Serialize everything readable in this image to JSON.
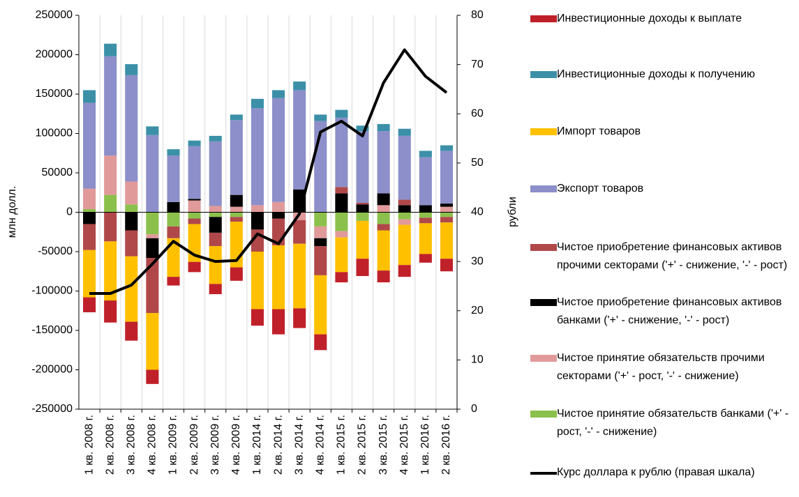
{
  "chart_data": {
    "type": "bar",
    "y_label": "млн долл.",
    "y2_label": "рубли",
    "categories": [
      "1 кв. 2008 г.",
      "2 кв. 2008 г.",
      "3 кв. 2008 г.",
      "4 кв. 2008 г.",
      "1 кв. 2009 г.",
      "2 кв. 2009 г.",
      "3 кв. 2009 г.",
      "4 кв. 2009 г.",
      "1 кв. 2014 г.",
      "2 кв. 2014 г.",
      "3 кв. 2014 г.",
      "4 кв. 2014 г.",
      "1 кв. 2015 г.",
      "2 кв. 2015 г.",
      "3 кв. 2015 г.",
      "4 кв. 2015 г.",
      "1 кв. 2016 г.",
      "2 кв. 2016 г."
    ],
    "stacked": true,
    "series": [
      {
        "name": "Инвестиционные доходы к выплате",
        "color": "#c0202a",
        "values": [
          -19000,
          -28000,
          -24000,
          -18000,
          -11000,
          -13000,
          -13000,
          -17000,
          -21000,
          -32000,
          -25000,
          -20000,
          -13000,
          -22000,
          -15000,
          -15000,
          -11000,
          -16000
        ]
      },
      {
        "name": "Инвестиционные доходы к получению",
        "color": "#3b90a8",
        "values": [
          16000,
          16000,
          14000,
          11000,
          8000,
          7000,
          7000,
          7000,
          12000,
          10000,
          11000,
          8000,
          10000,
          7000,
          9000,
          9000,
          8000,
          7000
        ]
      },
      {
        "name": "Импорт товаров",
        "color": "#ffc000",
        "values": [
          -60000,
          -75000,
          -83000,
          -72000,
          -49000,
          -48000,
          -48000,
          -58000,
          -73000,
          -81000,
          -82000,
          -75000,
          -44000,
          -48000,
          -51000,
          -51000,
          -39000,
          -46000
        ]
      },
      {
        "name": "Экспорт товаров",
        "color": "#8c8fc9",
        "values": [
          109000,
          126000,
          135000,
          98000,
          59000,
          67000,
          82000,
          95000,
          123000,
          132000,
          126000,
          116000,
          88000,
          91000,
          79000,
          81000,
          61000,
          67000
        ]
      },
      {
        "name": "Чистое приобретение финансовых активов прочими секторами ('+' - снижение, '-' - рост)",
        "color": "#b0484a",
        "values": [
          -33000,
          -37000,
          -33000,
          -70000,
          -15000,
          -7000,
          -17000,
          -6000,
          -28000,
          -34000,
          -30000,
          -37000,
          8000,
          2000,
          -8000,
          7000,
          -7000,
          -7000
        ]
      },
      {
        "name": "Чистое приобретение финансовых активов банками ('+' - снижение, '-' - рост)",
        "color": "#000000",
        "values": [
          -15000,
          0,
          -23000,
          -25000,
          13000,
          2000,
          -20000,
          15000,
          -22000,
          -8000,
          29000,
          -10000,
          24000,
          10000,
          15000,
          9000,
          9000,
          4000
        ]
      },
      {
        "name": "Чистое принятие обязательств прочими секторами ('+' - рост, '-' - снижение)",
        "color": "#e09a9a",
        "values": [
          26000,
          50000,
          29000,
          -5000,
          0,
          15000,
          8000,
          7000,
          9000,
          13000,
          -10000,
          -15000,
          -8000,
          0,
          9000,
          -7000,
          0,
          7000
        ]
      },
      {
        "name": "Чистое принятие обязательств банками ('+' - рост, '-' - снижение)",
        "color": "#8cc04c",
        "values": [
          4000,
          22000,
          10000,
          -28000,
          -18000,
          -8000,
          -6000,
          -6000,
          0,
          0,
          0,
          -18000,
          -24000,
          -11000,
          -15000,
          -9000,
          -7000,
          -6000
        ]
      },
      {
        "name": "Курс доллара к рублю (правая шкала)",
        "type": "line",
        "axis": "y2",
        "color": "#000000",
        "values": [
          23.5,
          23.5,
          25.2,
          29.5,
          34.1,
          31.3,
          30,
          30.2,
          35.6,
          33.6,
          39.7,
          56.3,
          58.5,
          55.5,
          66.3,
          73,
          67.6,
          64.3
        ]
      }
    ],
    "ylim": [
      -250000,
      250000
    ],
    "yticks": [
      -250000,
      -200000,
      -150000,
      -100000,
      -50000,
      0,
      50000,
      100000,
      150000,
      200000,
      250000
    ],
    "y2lim": [
      0,
      80
    ],
    "y2ticks": [
      0,
      10,
      20,
      30,
      40,
      50,
      60,
      70,
      80
    ],
    "grid": "x"
  }
}
